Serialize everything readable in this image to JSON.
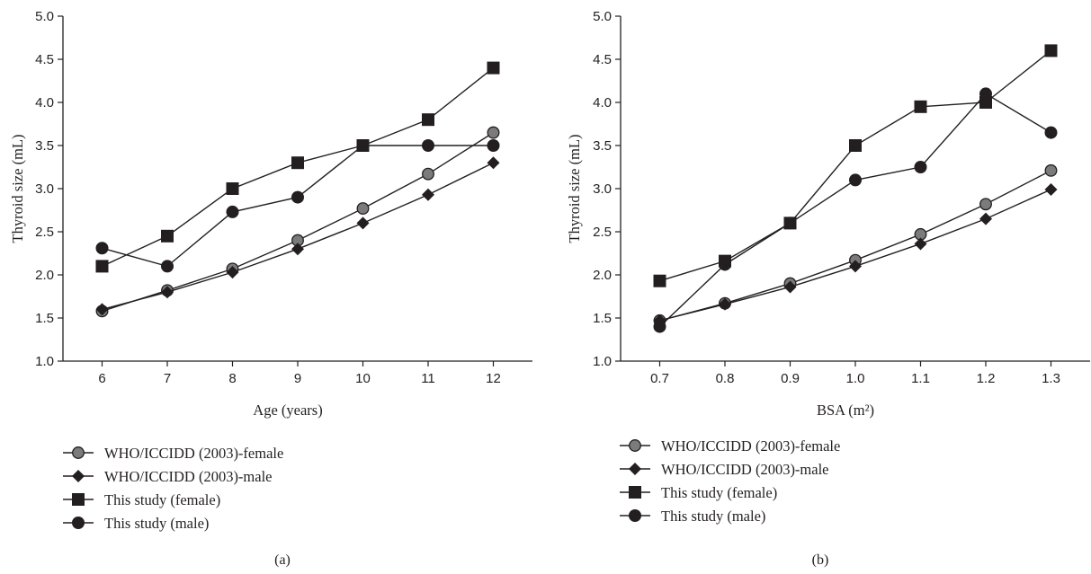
{
  "chart_data": [
    {
      "type": "line",
      "panel_label": "(a)",
      "xlabel": "Age (years)",
      "ylabel": "Thyroid size (mL)",
      "x": [
        6,
        7,
        8,
        9,
        10,
        11,
        12
      ],
      "x_tick_labels": [
        "6",
        "7",
        "8",
        "9",
        "10",
        "11",
        "12"
      ],
      "xlim": [
        5.4,
        12.6
      ],
      "ylim": [
        1.0,
        5.0
      ],
      "y_tick_labels": [
        "1.0",
        "1.5",
        "2.0",
        "2.5",
        "3.0",
        "3.5",
        "4.0",
        "4.5",
        "5.0"
      ],
      "grid": false,
      "legend_position": "bottom",
      "series": [
        {
          "name": "WHO/ICCIDD (2003)-female",
          "marker": "circle-gray",
          "values": [
            1.58,
            1.82,
            2.07,
            2.4,
            2.77,
            3.17,
            3.65
          ]
        },
        {
          "name": "WHO/ICCIDD (2003)-male",
          "marker": "diamond",
          "values": [
            1.6,
            1.8,
            2.03,
            2.3,
            2.6,
            2.93,
            3.3
          ]
        },
        {
          "name": "This study (female)",
          "marker": "square",
          "values": [
            2.1,
            2.45,
            3.0,
            3.3,
            3.5,
            3.8,
            4.4
          ]
        },
        {
          "name": "This study (male)",
          "marker": "circle",
          "values": [
            2.31,
            2.1,
            2.73,
            2.9,
            3.5,
            3.5,
            3.5
          ]
        }
      ]
    },
    {
      "type": "line",
      "panel_label": "(b)",
      "xlabel": "BSA (m²)",
      "ylabel": "Thyroid size (mL)",
      "x": [
        0.7,
        0.8,
        0.9,
        1.0,
        1.1,
        1.2,
        1.3
      ],
      "x_tick_labels": [
        "0.7",
        "0.8",
        "0.9",
        "1.0",
        "1.1",
        "1.2",
        "1.3"
      ],
      "xlim": [
        0.64,
        1.36
      ],
      "ylim": [
        1.0,
        5.0
      ],
      "y_tick_labels": [
        "1.0",
        "1.5",
        "2.0",
        "2.5",
        "3.0",
        "3.5",
        "4.0",
        "4.5",
        "5.0"
      ],
      "grid": false,
      "legend_position": "bottom",
      "series": [
        {
          "name": "WHO/ICCIDD (2003)-female",
          "marker": "circle-gray",
          "values": [
            1.47,
            1.67,
            1.9,
            2.17,
            2.47,
            2.82,
            3.21
          ]
        },
        {
          "name": "WHO/ICCIDD (2003)-male",
          "marker": "diamond",
          "values": [
            1.47,
            1.66,
            1.86,
            2.1,
            2.36,
            2.65,
            2.99
          ]
        },
        {
          "name": "This study (female)",
          "marker": "square",
          "values": [
            1.93,
            2.16,
            2.6,
            3.5,
            3.95,
            4.0,
            4.6
          ]
        },
        {
          "name": "This study (male)",
          "marker": "circle",
          "values": [
            1.4,
            2.12,
            2.6,
            3.1,
            3.25,
            4.1,
            3.65
          ]
        }
      ]
    }
  ]
}
